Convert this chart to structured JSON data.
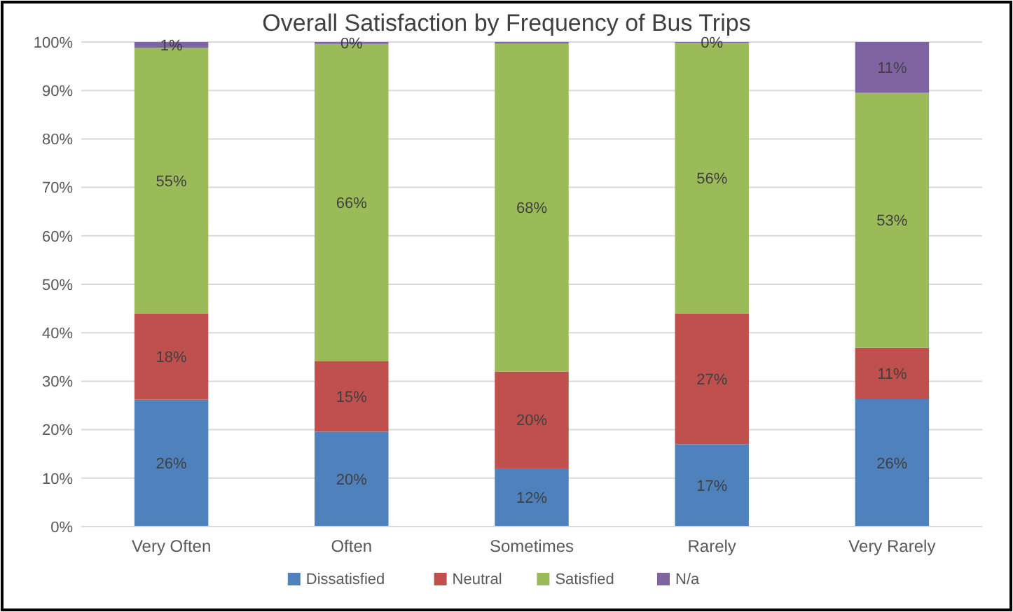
{
  "chart_data": {
    "type": "bar",
    "title": "Overall Satisfaction by Frequency of Bus Trips",
    "stacked": true,
    "categories": [
      "Very Often",
      "Often",
      "Sometimes",
      "Rarely",
      "Very Rarely"
    ],
    "series": [
      {
        "name": "Dissatisfied",
        "color": "#4f81bd",
        "values": [
          26.2,
          19.6,
          12,
          17,
          26.3
        ],
        "value_labels": [
          "26%",
          "20%",
          "12%",
          "17%",
          "26%"
        ]
      },
      {
        "name": "Neutral",
        "color": "#c0504d",
        "values": [
          17.8,
          14.5,
          20,
          27,
          10.6
        ],
        "value_labels": [
          "18%",
          "15%",
          "20%",
          "27%",
          "11%"
        ]
      },
      {
        "name": "Satisfied",
        "color": "#9bbb59",
        "values": [
          54.8,
          65.5,
          67.7,
          55.8,
          52.6
        ],
        "value_labels": [
          "55%",
          "66%",
          "68%",
          "56%",
          "53%"
        ]
      },
      {
        "name": "N/a",
        "color": "#8064a2",
        "values": [
          1.2,
          0.4,
          0.3,
          0.2,
          10.5
        ],
        "value_labels": [
          "1%",
          "0%",
          null,
          "0%",
          "11%"
        ]
      }
    ],
    "ylim": [
      0,
      100
    ],
    "yticks": [
      {
        "value": 0,
        "label": "0%"
      },
      {
        "value": 10,
        "label": "10%"
      },
      {
        "value": 20,
        "label": "20%"
      },
      {
        "value": 30,
        "label": "30%"
      },
      {
        "value": 40,
        "label": "40%"
      },
      {
        "value": 50,
        "label": "50%"
      },
      {
        "value": 60,
        "label": "60%"
      },
      {
        "value": 70,
        "label": "70%"
      },
      {
        "value": 80,
        "label": "80%"
      },
      {
        "value": 90,
        "label": "90%"
      },
      {
        "value": 100,
        "label": "100%"
      }
    ],
    "grid": "y",
    "legend": "bottom"
  }
}
